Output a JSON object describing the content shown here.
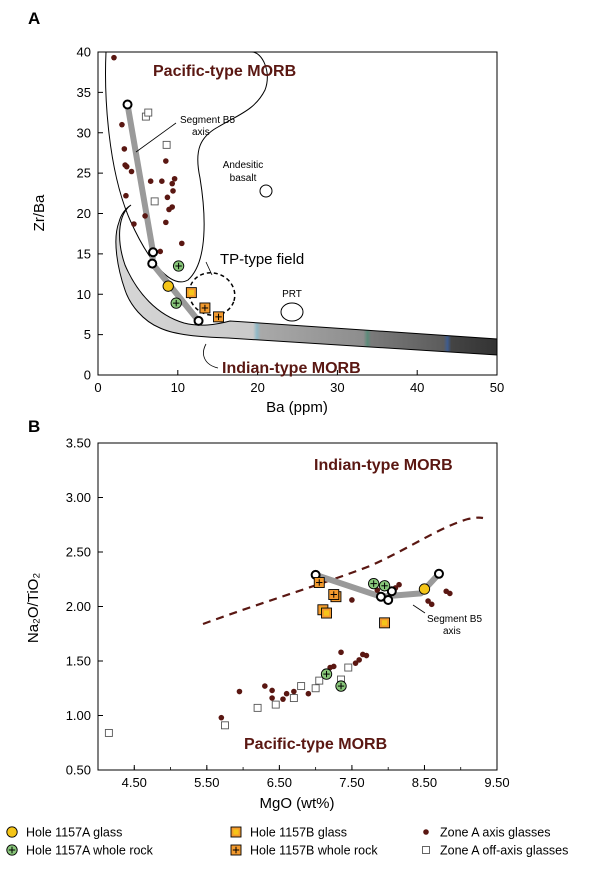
{
  "colors": {
    "maroon": "#5a1712",
    "yellow": "#f5c518",
    "orange": "#f29a2e",
    "green": "#88c67a",
    "gray_path": "#9a9a9a"
  },
  "legend": [
    {
      "symbol": "circle-yellow",
      "label": "Hole 1157A glass"
    },
    {
      "symbol": "square-orange",
      "label": "Hole 1157B glass"
    },
    {
      "symbol": "dot-maroon",
      "label": "Zone A axis glasses"
    },
    {
      "symbol": "circle-green-plus",
      "label": "Hole 1157A whole rock"
    },
    {
      "symbol": "square-orange-plus",
      "label": "Hole 1157B whole rock"
    },
    {
      "symbol": "square-open",
      "label": "Zone A off-axis glasses"
    }
  ],
  "chart_data": [
    {
      "panel": "A",
      "type": "scatter",
      "xlabel": "Ba (ppm)",
      "ylabel": "Zr/Ba",
      "xlim": [
        0,
        50
      ],
      "ylim": [
        0,
        40
      ],
      "xticks": [
        "0",
        "10",
        "20",
        "30",
        "40",
        "50"
      ],
      "yticks": [
        "0",
        "5",
        "10",
        "15",
        "20",
        "25",
        "30",
        "35",
        "40"
      ],
      "fields": {
        "pacific": "Pacific-type MORB",
        "indian": "Indian-type MORB",
        "tp": "TP-type field",
        "andesitic_line1": "Andesitic",
        "andesitic_line2": "basalt",
        "prt": "PRT",
        "segment_line1": "Segment B5",
        "segment_line2": "axis"
      },
      "series": [
        {
          "name": "Zone A axis glasses",
          "marker": "dot",
          "points": [
            [
              2,
              39.3
            ],
            [
              3,
              31
            ],
            [
              3.3,
              28
            ],
            [
              3.4,
              26
            ],
            [
              3.6,
              25.8
            ],
            [
              4.2,
              25.2
            ],
            [
              3.5,
              22.2
            ],
            [
              4.5,
              18.7
            ],
            [
              5.9,
              19.7
            ],
            [
              6.6,
              24
            ],
            [
              8,
              24
            ],
            [
              8.5,
              26.5
            ],
            [
              9.3,
              23.7
            ],
            [
              9.6,
              24.3
            ],
            [
              9.4,
              22.8
            ],
            [
              8.7,
              22
            ],
            [
              8.9,
              20.5
            ],
            [
              9.3,
              20.8
            ],
            [
              8.5,
              18.9
            ],
            [
              10.5,
              16.3
            ],
            [
              7.8,
              15.3
            ]
          ]
        },
        {
          "name": "Zone A off-axis glasses",
          "marker": "open-square",
          "points": [
            [
              6,
              32
            ],
            [
              6.3,
              32.5
            ],
            [
              8.6,
              28.5
            ],
            [
              7.1,
              21.5
            ]
          ]
        },
        {
          "name": "Segment B5 axis",
          "marker": "open-circle",
          "points": [
            [
              3.7,
              33.5
            ],
            [
              6.9,
              15.2
            ],
            [
              6.8,
              13.8
            ],
            [
              12.6,
              6.7
            ]
          ]
        },
        {
          "name": "Hole 1157A glass",
          "marker": "circle-yellow",
          "points": [
            [
              8.8,
              11
            ]
          ]
        },
        {
          "name": "Hole 1157A whole rock",
          "marker": "circle-green-plus",
          "points": [
            [
              10.1,
              13.5
            ],
            [
              9.8,
              8.9
            ]
          ]
        },
        {
          "name": "Hole 1157B glass",
          "marker": "square-orange",
          "points": [
            [
              11.7,
              10.2
            ]
          ]
        },
        {
          "name": "Hole 1157B whole rock",
          "marker": "square-orange-plus",
          "points": [
            [
              13.4,
              8.3
            ],
            [
              15.1,
              7.2
            ]
          ]
        }
      ]
    },
    {
      "panel": "B",
      "type": "scatter",
      "xlabel": "MgO (wt%)",
      "ylabel": "Na₂O/TiO₂",
      "xlim": [
        4,
        9.5
      ],
      "ylim": [
        0.5,
        3.5
      ],
      "xticks": [
        "4.50",
        "5.50",
        "6.50",
        "7.50",
        "8.50",
        "9.50"
      ],
      "yticks": [
        "0.50",
        "1.00",
        "1.50",
        "2.00",
        "2.50",
        "3.00",
        "3.50"
      ],
      "fields": {
        "indian": "Indian-type MORB",
        "pacific": "Pacific-type MORB",
        "segment_line1": "Segment B5",
        "segment_line2": "axis"
      },
      "series": [
        {
          "name": "Zone A axis glasses",
          "marker": "dot",
          "points": [
            [
              5.7,
              0.98
            ],
            [
              5.95,
              1.22
            ],
            [
              6.3,
              1.27
            ],
            [
              6.4,
              1.23
            ],
            [
              6.4,
              1.16
            ],
            [
              6.55,
              1.15
            ],
            [
              6.6,
              1.2
            ],
            [
              6.7,
              1.22
            ],
            [
              6.9,
              1.2
            ],
            [
              7.2,
              1.44
            ],
            [
              7.25,
              1.45
            ],
            [
              7.35,
              1.58
            ],
            [
              7.45,
              1.43
            ],
            [
              7.55,
              1.48
            ],
            [
              7.6,
              1.51
            ],
            [
              7.65,
              1.56
            ],
            [
              7.7,
              1.55
            ],
            [
              7.5,
              2.06
            ],
            [
              7.85,
              2.15
            ],
            [
              8.1,
              2.17
            ],
            [
              8.15,
              2.2
            ],
            [
              8.55,
              2.05
            ],
            [
              8.6,
              2.02
            ],
            [
              8.8,
              2.14
            ],
            [
              8.85,
              2.12
            ]
          ]
        },
        {
          "name": "Zone A off-axis glasses",
          "marker": "open-square",
          "points": [
            [
              4.15,
              0.84
            ],
            [
              5.75,
              0.91
            ],
            [
              6.2,
              1.07
            ],
            [
              6.45,
              1.1
            ],
            [
              6.8,
              1.27
            ],
            [
              6.7,
              1.16
            ],
            [
              7.0,
              1.25
            ],
            [
              7.05,
              1.32
            ],
            [
              7.35,
              1.33
            ],
            [
              7.45,
              1.44
            ]
          ]
        },
        {
          "name": "Segment B5 axis",
          "marker": "open-circle",
          "points": [
            [
              7.0,
              2.29
            ],
            [
              7.9,
              2.09
            ],
            [
              8.0,
              2.06
            ],
            [
              8.05,
              2.14
            ],
            [
              8.7,
              2.3
            ]
          ]
        },
        {
          "name": "Hole 1157A glass",
          "marker": "circle-yellow",
          "points": [
            [
              8.5,
              2.16
            ]
          ]
        },
        {
          "name": "Hole 1157A whole rock",
          "marker": "circle-green-plus",
          "points": [
            [
              7.8,
              2.21
            ],
            [
              7.95,
              2.19
            ],
            [
              7.15,
              1.38
            ],
            [
              7.35,
              1.27
            ]
          ]
        },
        {
          "name": "Hole 1157B glass",
          "marker": "square-orange",
          "points": [
            [
              7.1,
              1.97
            ],
            [
              7.15,
              1.94
            ],
            [
              7.95,
              1.85
            ]
          ]
        },
        {
          "name": "Hole 1157B whole rock",
          "marker": "square-orange-plus",
          "points": [
            [
              7.05,
              2.22
            ],
            [
              7.28,
              2.09
            ],
            [
              7.25,
              2.11
            ]
          ]
        }
      ]
    }
  ]
}
